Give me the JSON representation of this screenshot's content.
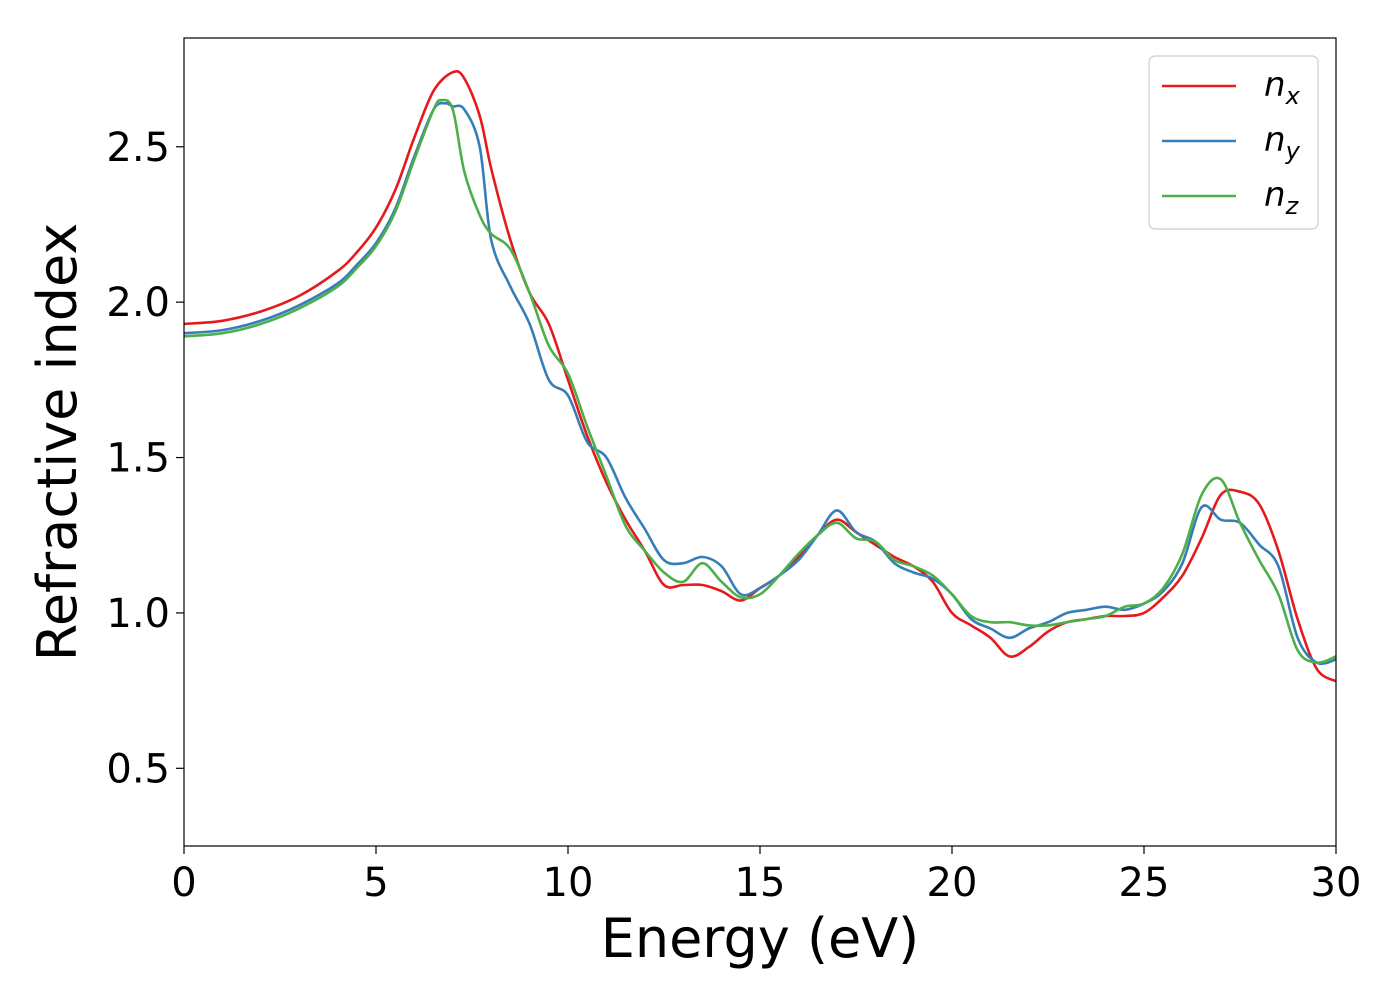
{
  "chart_data": {
    "type": "line",
    "title": "",
    "xlabel": "Energy (eV)",
    "ylabel": "Refractive index",
    "xlim": [
      0,
      30
    ],
    "ylim": [
      0.25,
      2.85
    ],
    "xticks": [
      0,
      5,
      10,
      15,
      20,
      25,
      30
    ],
    "xtick_labels": [
      "0",
      "5",
      "10",
      "15",
      "20",
      "25",
      "30"
    ],
    "yticks": [
      0.5,
      1.0,
      1.5,
      2.0,
      2.5
    ],
    "ytick_labels": [
      "0.5",
      "1.0",
      "1.5",
      "2.0",
      "2.5"
    ],
    "grid": false,
    "legend_position": "top-right",
    "series": [
      {
        "name": "n_x",
        "label_main": "n",
        "label_sub": "x",
        "color": "#e41a1c",
        "x": [
          0,
          1,
          2,
          3,
          4,
          4.5,
          5,
          5.5,
          6,
          6.5,
          7,
          7.3,
          7.7,
          8,
          8.5,
          9,
          9.5,
          10,
          10.5,
          11,
          11.5,
          12,
          12.5,
          13,
          13.5,
          14,
          14.5,
          15,
          15.5,
          16,
          16.5,
          17,
          17.5,
          18,
          18.5,
          19,
          19.5,
          20,
          20.5,
          21,
          21.5,
          22,
          22.5,
          23,
          23.5,
          24,
          24.5,
          25,
          25.5,
          26,
          26.5,
          27,
          27.5,
          28,
          28.5,
          29,
          29.5,
          30
        ],
        "y": [
          1.93,
          1.94,
          1.97,
          2.02,
          2.1,
          2.16,
          2.24,
          2.36,
          2.53,
          2.68,
          2.74,
          2.72,
          2.6,
          2.43,
          2.2,
          2.03,
          1.93,
          1.75,
          1.57,
          1.42,
          1.3,
          1.2,
          1.09,
          1.09,
          1.09,
          1.07,
          1.04,
          1.08,
          1.12,
          1.18,
          1.25,
          1.3,
          1.26,
          1.22,
          1.18,
          1.15,
          1.1,
          1.0,
          0.96,
          0.92,
          0.86,
          0.89,
          0.94,
          0.97,
          0.98,
          0.99,
          0.99,
          1.0,
          1.05,
          1.12,
          1.24,
          1.38,
          1.39,
          1.35,
          1.2,
          0.98,
          0.82,
          0.78
        ]
      },
      {
        "name": "n_y",
        "label_main": "n",
        "label_sub": "y",
        "color": "#377eb8",
        "x": [
          0,
          1,
          2,
          3,
          4,
          4.5,
          5,
          5.5,
          6,
          6.5,
          6.8,
          7,
          7.3,
          7.7,
          8,
          8.5,
          9,
          9.5,
          10,
          10.5,
          11,
          11.5,
          12,
          12.5,
          13,
          13.5,
          14,
          14.5,
          15,
          15.5,
          16,
          16.5,
          17,
          17.5,
          18,
          18.5,
          19,
          19.5,
          20,
          20.5,
          21,
          21.5,
          22,
          22.5,
          23,
          23.5,
          24,
          24.5,
          25,
          25.5,
          26,
          26.5,
          27,
          27.5,
          28,
          28.5,
          29,
          29.5,
          30
        ],
        "y": [
          1.9,
          1.91,
          1.94,
          1.99,
          2.06,
          2.12,
          2.19,
          2.3,
          2.47,
          2.62,
          2.64,
          2.63,
          2.62,
          2.5,
          2.2,
          2.05,
          1.93,
          1.75,
          1.7,
          1.55,
          1.5,
          1.37,
          1.27,
          1.17,
          1.16,
          1.18,
          1.15,
          1.06,
          1.08,
          1.12,
          1.17,
          1.25,
          1.33,
          1.26,
          1.23,
          1.16,
          1.13,
          1.11,
          1.06,
          0.98,
          0.95,
          0.92,
          0.95,
          0.97,
          1.0,
          1.01,
          1.02,
          1.01,
          1.03,
          1.07,
          1.16,
          1.34,
          1.3,
          1.29,
          1.22,
          1.15,
          0.92,
          0.84,
          0.85
        ]
      },
      {
        "name": "n_z",
        "label_main": "n",
        "label_sub": "z",
        "color": "#4daf4a",
        "x": [
          0,
          1,
          2,
          3,
          4,
          4.5,
          5,
          5.5,
          6,
          6.5,
          6.7,
          7,
          7.3,
          7.7,
          8,
          8.5,
          9,
          9.5,
          10,
          10.5,
          11,
          11.5,
          12,
          12.5,
          13,
          13.5,
          14,
          14.5,
          15,
          15.5,
          16,
          16.5,
          17,
          17.5,
          18,
          18.5,
          19,
          19.5,
          20,
          20.5,
          21,
          21.5,
          22,
          22.5,
          23,
          23.5,
          24,
          24.5,
          25,
          25.5,
          26,
          26.5,
          27,
          27.5,
          28,
          28.5,
          29,
          29.5,
          30
        ],
        "y": [
          1.89,
          1.9,
          1.93,
          1.98,
          2.05,
          2.11,
          2.18,
          2.29,
          2.46,
          2.62,
          2.65,
          2.62,
          2.42,
          2.28,
          2.22,
          2.17,
          2.03,
          1.86,
          1.77,
          1.6,
          1.44,
          1.28,
          1.2,
          1.13,
          1.1,
          1.16,
          1.1,
          1.05,
          1.06,
          1.12,
          1.19,
          1.25,
          1.29,
          1.24,
          1.23,
          1.17,
          1.15,
          1.12,
          1.06,
          0.99,
          0.97,
          0.97,
          0.96,
          0.96,
          0.97,
          0.98,
          0.99,
          1.02,
          1.03,
          1.08,
          1.19,
          1.38,
          1.43,
          1.29,
          1.17,
          1.06,
          0.88,
          0.84,
          0.86
        ]
      }
    ]
  }
}
